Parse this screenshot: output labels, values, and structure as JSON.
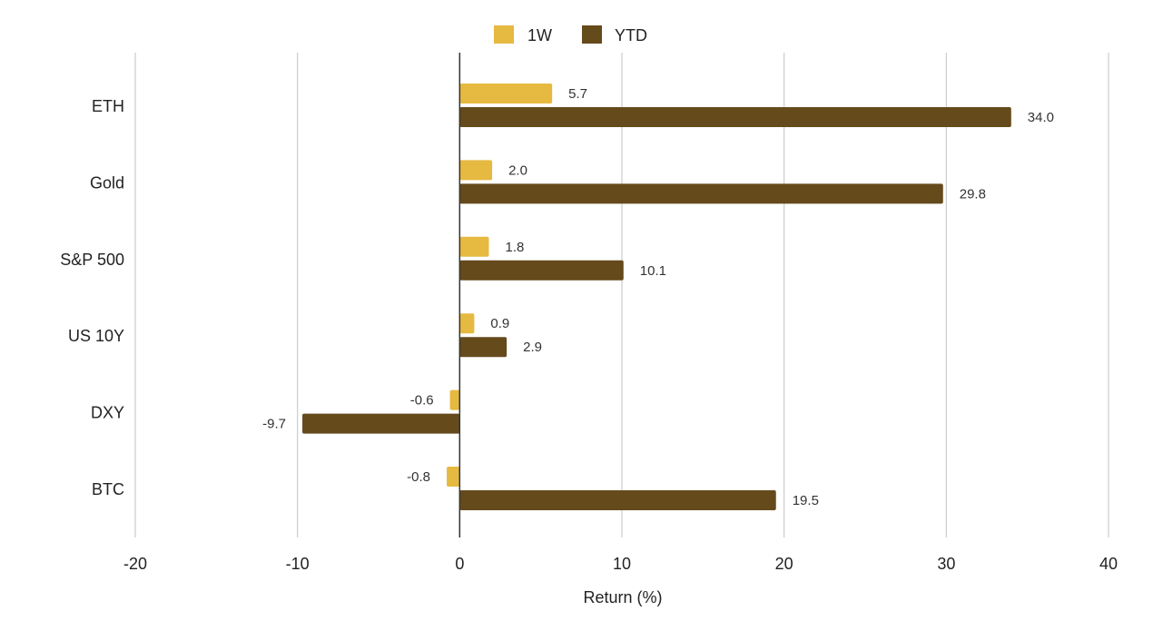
{
  "chart_data": {
    "type": "bar",
    "orientation": "horizontal",
    "categories": [
      "ETH",
      "Gold",
      "S&P 500",
      "US 10Y",
      "DXY",
      "BTC"
    ],
    "series": [
      {
        "name": "1W",
        "values": [
          5.7,
          2.0,
          1.8,
          0.9,
          -0.6,
          -0.8
        ],
        "labels": [
          "5.7",
          "2.0",
          "1.8",
          "0.9",
          "-0.6",
          "-0.8"
        ],
        "color": "#e6b941"
      },
      {
        "name": "YTD",
        "values": [
          34.0,
          29.8,
          10.1,
          2.9,
          -9.7,
          19.5
        ],
        "labels": [
          "34.0",
          "29.8",
          "10.1",
          "2.9",
          "-9.7",
          "19.5"
        ],
        "color": "#654a1c"
      }
    ],
    "xlabel": "Return (%)",
    "ylabel": "",
    "xlim": [
      -20,
      40
    ],
    "xticks": [
      "-20",
      "-10",
      "0",
      "10",
      "20",
      "30",
      "40"
    ],
    "grid": true,
    "legend_position": "top"
  }
}
